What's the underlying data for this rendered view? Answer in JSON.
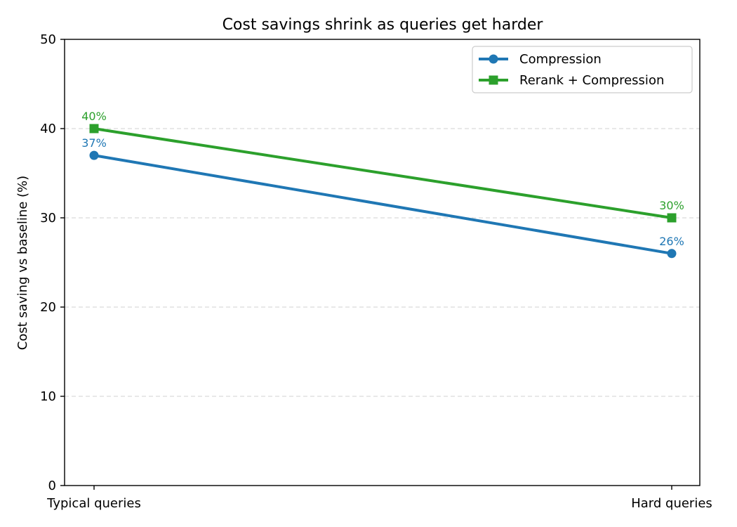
{
  "chart_data": {
    "type": "line",
    "title": "Cost savings shrink as queries get harder",
    "xlabel": "",
    "ylabel": "Cost saving vs baseline (%)",
    "categories": [
      "Typical queries",
      "Hard queries"
    ],
    "ylim": [
      0,
      50
    ],
    "yticks": [
      0,
      10,
      20,
      30,
      40,
      50
    ],
    "grid": "y-dashed",
    "legend_position": "top-right",
    "series": [
      {
        "name": "Compression",
        "values": [
          37,
          26
        ],
        "labels": [
          "37%",
          "26%"
        ],
        "color": "#1f77b4",
        "marker": "circle"
      },
      {
        "name": "Rerank + Compression",
        "values": [
          40,
          30
        ],
        "labels": [
          "40%",
          "30%"
        ],
        "color": "#2ca02c",
        "marker": "square"
      }
    ]
  }
}
